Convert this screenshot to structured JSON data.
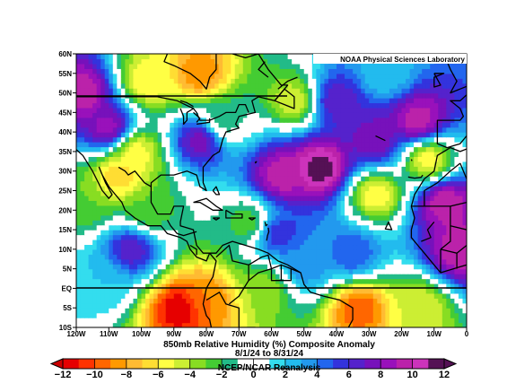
{
  "credit": "NOAA Physical Sciences Laboratory",
  "title_line1": "850mb Relative Humidity (%) Composite Anomaly",
  "title_line2": "8/1/24  to 8/31/24",
  "title_line3": "NCEP/NCAR Reanalysis",
  "map": {
    "lat_labels": [
      "60N",
      "55N",
      "50N",
      "45N",
      "40N",
      "35N",
      "30N",
      "25N",
      "20N",
      "15N",
      "10N",
      "5N",
      "EQ",
      "5S",
      "10S"
    ],
    "lon_labels": [
      "120W",
      "110W",
      "100W",
      "90W",
      "80W",
      "70W",
      "60W",
      "50W",
      "40W",
      "30W",
      "20W",
      "10W",
      "0"
    ]
  },
  "colorbar": {
    "tick_labels": [
      "−12",
      "−10",
      "−8",
      "−6",
      "−4",
      "−2",
      "0",
      "2",
      "4",
      "6",
      "8",
      "10",
      "12"
    ],
    "colors": [
      "#e60000",
      "#ff3300",
      "#ff6600",
      "#ff9900",
      "#ffbb33",
      "#ffdd33",
      "#ffff44",
      "#ccee33",
      "#88dd22",
      "#44cc33",
      "#22bb88",
      "#ffffff",
      "#ffffff",
      "#33ddee",
      "#22bbee",
      "#2299ee",
      "#2266ee",
      "#3333dd",
      "#5522cc",
      "#7711bb",
      "#9911bb",
      "#bb22aa",
      "#cc33bb",
      "#551155"
    ]
  },
  "chart_data": {
    "type": "heatmap",
    "title": "850mb Relative Humidity (%) Composite Anomaly",
    "subtitle": "8/1/24  to 8/31/24",
    "xlim": [
      -120,
      0
    ],
    "ylim": [
      -10,
      60
    ],
    "zlim": [
      -12,
      12
    ],
    "anomaly_centers": [
      {
        "lon": -45,
        "lat": 31,
        "value": 12
      },
      {
        "lon": -57,
        "lat": 29,
        "value": 10
      },
      {
        "lon": -28,
        "lat": 38,
        "value": 8
      },
      {
        "lon": -15,
        "lat": 43,
        "value": 10
      },
      {
        "lon": -7,
        "lat": 22,
        "value": 10
      },
      {
        "lon": -110,
        "lat": 41,
        "value": 9
      },
      {
        "lon": -118,
        "lat": 50,
        "value": 10
      },
      {
        "lon": -103,
        "lat": 10,
        "value": 7
      },
      {
        "lon": -58,
        "lat": 14,
        "value": 6
      },
      {
        "lon": -50,
        "lat": 6,
        "value": 4
      },
      {
        "lon": -35,
        "lat": 9,
        "value": 5
      },
      {
        "lon": -2,
        "lat": 10,
        "value": 10
      },
      {
        "lon": -82,
        "lat": 38,
        "value": 8
      },
      {
        "lon": -40,
        "lat": 48,
        "value": 7
      },
      {
        "lon": -75,
        "lat": 43,
        "value": -2
      },
      {
        "lon": -88,
        "lat": -5,
        "value": -12
      },
      {
        "lon": -80,
        "lat": -3,
        "value": -9
      },
      {
        "lon": -33,
        "lat": -5,
        "value": -10
      },
      {
        "lon": -15,
        "lat": -5,
        "value": -5
      },
      {
        "lon": -53,
        "lat": 48,
        "value": -5
      },
      {
        "lon": -82,
        "lat": 55,
        "value": -9
      },
      {
        "lon": -98,
        "lat": 53,
        "value": -6
      },
      {
        "lon": -107,
        "lat": 29,
        "value": -7
      },
      {
        "lon": -102,
        "lat": 35,
        "value": -6
      },
      {
        "lon": -67,
        "lat": 17,
        "value": -3
      },
      {
        "lon": -28,
        "lat": 24,
        "value": -6
      },
      {
        "lon": -12,
        "lat": 33,
        "value": -6
      },
      {
        "lon": -98,
        "lat": 20,
        "value": -3
      },
      {
        "lon": -118,
        "lat": 22,
        "value": -3
      },
      {
        "lon": -62,
        "lat": 0,
        "value": -4
      },
      {
        "lon": -112,
        "lat": 2,
        "value": 2
      },
      {
        "lon": -25,
        "lat": 55,
        "value": 2
      }
    ]
  }
}
